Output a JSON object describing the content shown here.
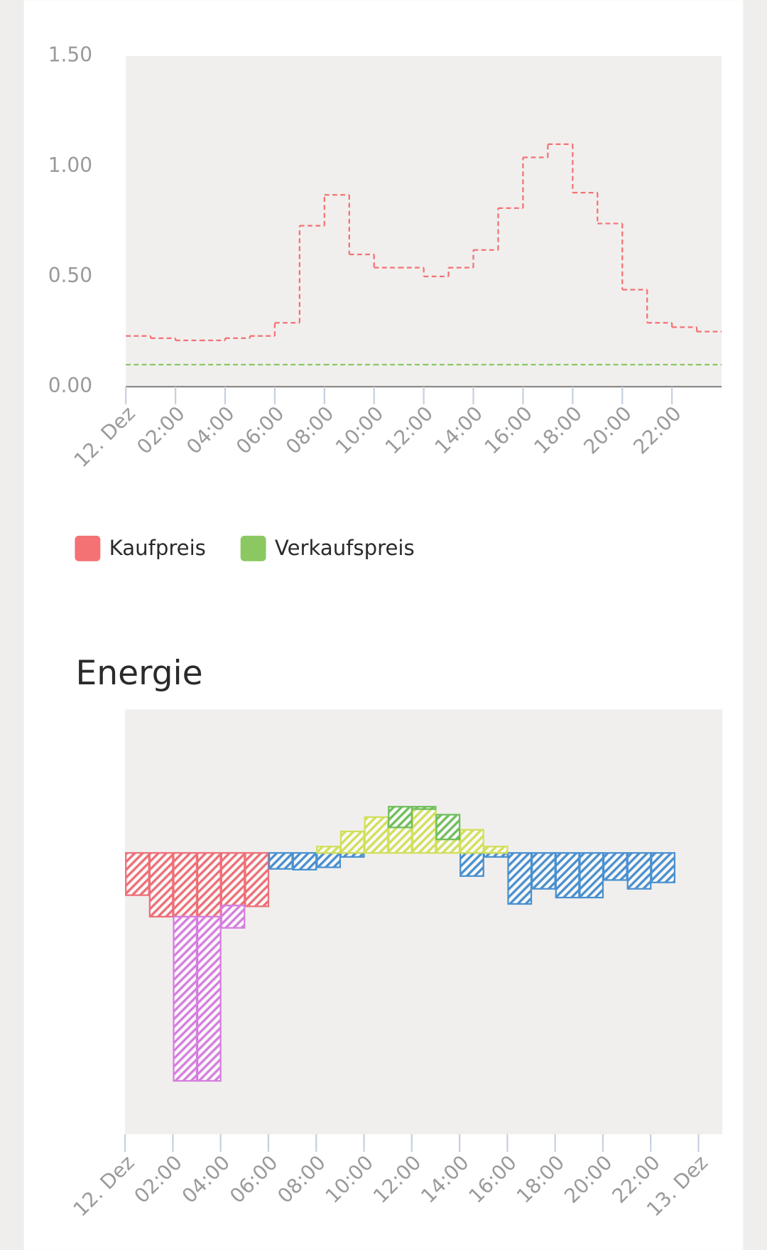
{
  "chart_data": [
    {
      "type": "step",
      "x": [
        0,
        1,
        2,
        3,
        4,
        5,
        6,
        7,
        8,
        9,
        10,
        11,
        12,
        13,
        14,
        15,
        16,
        17,
        18,
        19,
        20,
        21,
        22,
        23
      ],
      "series": [
        {
          "name": "Kaufpreis",
          "color": "#f47174",
          "values": [
            0.23,
            0.22,
            0.21,
            0.21,
            0.22,
            0.23,
            0.29,
            0.73,
            0.87,
            0.6,
            0.54,
            0.54,
            0.5,
            0.54,
            0.62,
            0.81,
            1.04,
            1.1,
            0.88,
            0.74,
            0.44,
            0.29,
            0.27,
            0.25
          ]
        },
        {
          "name": "Verkaufspreis",
          "color": "#8bc862",
          "values": [
            0.1,
            0.1,
            0.1,
            0.1,
            0.1,
            0.1,
            0.1,
            0.1,
            0.1,
            0.1,
            0.1,
            0.1,
            0.1,
            0.1,
            0.1,
            0.1,
            0.1,
            0.1,
            0.1,
            0.1,
            0.1,
            0.1,
            0.1,
            0.1
          ]
        }
      ],
      "xlim": [
        0,
        24
      ],
      "xticks": [
        {
          "value": 0,
          "label": "12. Dez"
        },
        {
          "value": 2,
          "label": "02:00"
        },
        {
          "value": 4,
          "label": "04:00"
        },
        {
          "value": 6,
          "label": "06:00"
        },
        {
          "value": 8,
          "label": "08:00"
        },
        {
          "value": 10,
          "label": "10:00"
        },
        {
          "value": 12,
          "label": "12:00"
        },
        {
          "value": 14,
          "label": "14:00"
        },
        {
          "value": 16,
          "label": "16:00"
        },
        {
          "value": 18,
          "label": "18:00"
        },
        {
          "value": 20,
          "label": "20:00"
        },
        {
          "value": 22,
          "label": "22:00"
        }
      ],
      "ylim": [
        0,
        1.5
      ],
      "yticks": [
        {
          "value": 0,
          "label": "0.00"
        },
        {
          "value": 0.5,
          "label": "0.50"
        },
        {
          "value": 1,
          "label": "1.00"
        },
        {
          "value": 1.5,
          "label": "1.50"
        }
      ]
    },
    {
      "type": "stacked-bar",
      "title": "Energie",
      "x": [
        0,
        1,
        2,
        3,
        4,
        5,
        6,
        7,
        8,
        9,
        10,
        11,
        12,
        13,
        14,
        15,
        16,
        17,
        18,
        19,
        20,
        21,
        22
      ],
      "series": [
        {
          "color": "#ee6f78",
          "values": [
            -0.53,
            -0.8,
            -0.8,
            -0.8,
            -0.66,
            -0.67,
            0,
            0,
            0,
            0,
            0,
            0,
            0,
            0,
            0,
            0,
            0,
            0,
            0,
            0,
            0,
            0,
            0
          ]
        },
        {
          "color": "#d77de0",
          "values": [
            0,
            0,
            -2.06,
            -2.06,
            -0.28,
            0,
            0,
            0,
            0,
            0,
            0,
            0,
            0,
            0,
            0,
            0,
            0,
            0,
            0,
            0,
            0,
            0,
            0
          ]
        },
        {
          "color": "#4a90d0",
          "values": [
            0,
            0,
            0,
            0,
            0,
            0,
            -0.2,
            -0.21,
            -0.18,
            -0.05,
            0,
            0,
            0,
            0,
            -0.29,
            -0.05,
            -0.64,
            -0.45,
            -0.56,
            -0.56,
            -0.34,
            -0.45,
            -0.37
          ]
        },
        {
          "color": "#d2df5a",
          "values": [
            0,
            0,
            0,
            0,
            0,
            0,
            0,
            0,
            0.08,
            0.27,
            0.45,
            0.32,
            0.55,
            0.17,
            0.29,
            0.08,
            0,
            0,
            0,
            0,
            0,
            0,
            0
          ]
        },
        {
          "color": "#6fbf5a",
          "values": [
            0,
            0,
            0,
            0,
            0,
            0,
            0,
            0,
            0,
            0,
            0,
            0.26,
            0.03,
            0.31,
            0,
            0,
            0,
            0,
            0,
            0,
            0,
            0,
            0
          ]
        }
      ],
      "xlim": [
        0,
        25
      ],
      "xticks": [
        {
          "value": 0,
          "label": "12. Dez"
        },
        {
          "value": 2,
          "label": "02:00"
        },
        {
          "value": 4,
          "label": "04:00"
        },
        {
          "value": 6,
          "label": "06:00"
        },
        {
          "value": 8,
          "label": "08:00"
        },
        {
          "value": 10,
          "label": "10:00"
        },
        {
          "value": 12,
          "label": "12:00"
        },
        {
          "value": 14,
          "label": "14:00"
        },
        {
          "value": 16,
          "label": "16:00"
        },
        {
          "value": 18,
          "label": "18:00"
        },
        {
          "value": 20,
          "label": "20:00"
        },
        {
          "value": 22,
          "label": "22:00"
        },
        {
          "value": 24,
          "label": "13. Dez"
        }
      ],
      "ylim": [
        -3.53,
        1.8
      ]
    }
  ]
}
